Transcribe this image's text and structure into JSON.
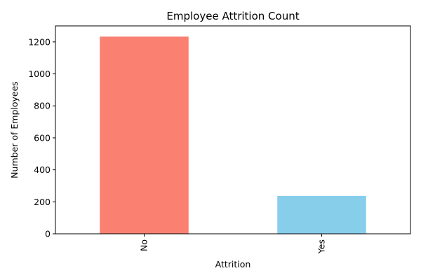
{
  "chart_data": {
    "type": "bar",
    "title": "Employee Attrition Count",
    "xlabel": "Attrition",
    "ylabel": "Number of Employees",
    "categories": [
      "No",
      "Yes"
    ],
    "values": [
      1233,
      237
    ],
    "colors": [
      "#fa8072",
      "#87ceeb"
    ],
    "ylim": [
      0,
      1300
    ],
    "yticks": [
      0,
      200,
      400,
      600,
      800,
      1000,
      1200
    ],
    "grid": false,
    "xtick_rotation": 90
  }
}
